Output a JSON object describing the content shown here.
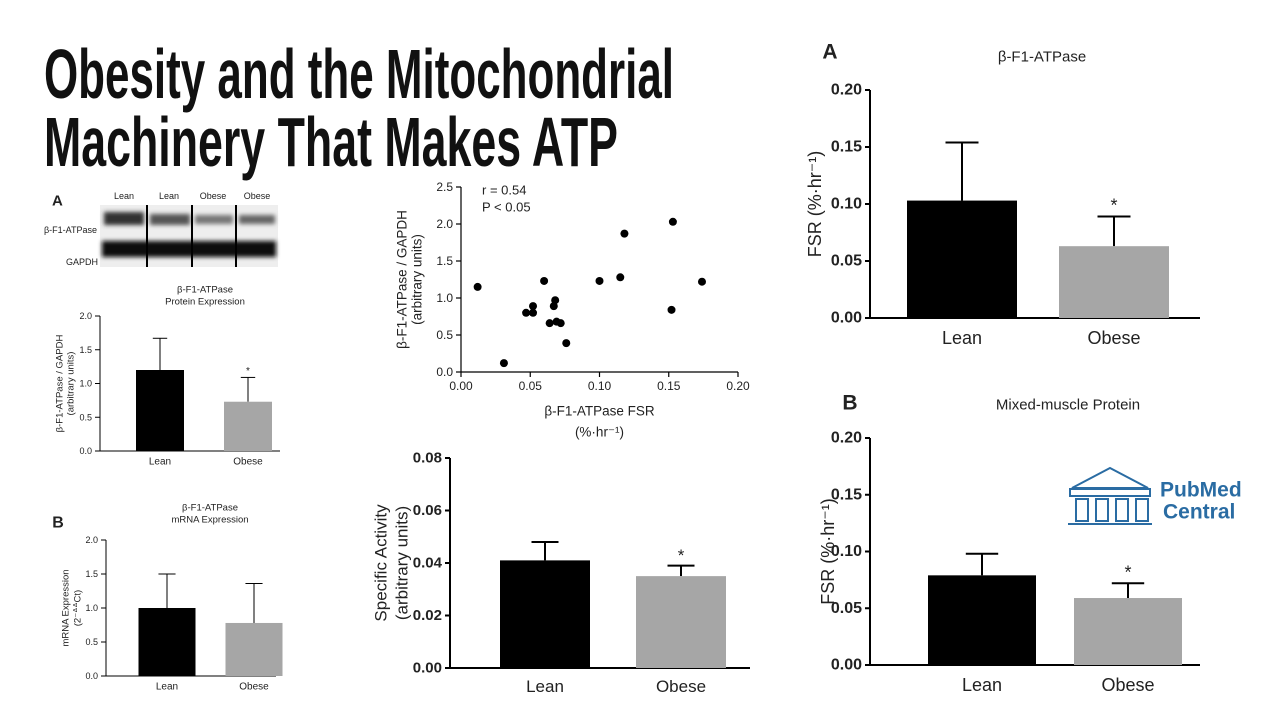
{
  "title": [
    "Obesity and the Mitochondrial",
    "Machinery That Makes ATP"
  ],
  "blot": {
    "panel": "A",
    "lanes": [
      "Lean",
      "Lean",
      "Obese",
      "Obese"
    ],
    "rows": [
      "β-F1-ATPase",
      "GAPDH"
    ]
  },
  "logo": {
    "lines": [
      "PubMed",
      "Central"
    ]
  },
  "chart_data": [
    {
      "type": "bar",
      "title": [
        "β-F1-ATPase",
        "Protein Expression"
      ],
      "ylabel": [
        "β-F1-ATPase / GAPDH",
        "(arbitrary units)"
      ],
      "categories": [
        "Lean",
        "Obese"
      ],
      "values": [
        1.2,
        0.73
      ],
      "errors": [
        0.47,
        0.36
      ],
      "colors": [
        "#000000",
        "#a6a6a6"
      ],
      "ylim": [
        0,
        2
      ],
      "yticks": [
        {
          "value": 0,
          "label": "0.0"
        },
        0.5,
        {
          "value": 1,
          "label": "1.0"
        },
        1.5,
        {
          "value": 2,
          "label": "2.0"
        }
      ],
      "annotation": "*"
    },
    {
      "type": "bar",
      "panel": "B",
      "title": [
        "β-F1-ATPase",
        "mRNA Expression"
      ],
      "ylabel": [
        "mRNA Expression",
        "(2⁻ᐞᐞCt)"
      ],
      "categories": [
        "Lean",
        "Obese"
      ],
      "values": [
        1.0,
        0.78
      ],
      "errors": [
        0.5,
        0.58
      ],
      "colors": [
        "#000000",
        "#a6a6a6"
      ],
      "ylim": [
        0,
        2
      ],
      "yticks": [
        {
          "value": 0,
          "label": "0.0"
        },
        0.5,
        {
          "value": 1,
          "label": "1.0"
        },
        1.5,
        {
          "value": 2,
          "label": "2.0"
        }
      ]
    },
    {
      "type": "scatter",
      "xlabel": [
        "β-F1-ATPase FSR",
        "(%·hr⁻¹)"
      ],
      "ylabel": [
        "β-F1-ATPase / GAPDH",
        "(arbitrary units)"
      ],
      "annotations": [
        "r = 0.54",
        "P < 0.05"
      ],
      "color": "#000000",
      "x": [
        0.012,
        0.031,
        0.06,
        0.047,
        0.052,
        0.052,
        0.068,
        0.067,
        0.064,
        0.069,
        0.072,
        0.076,
        0.1,
        0.115,
        0.118,
        0.153,
        0.152,
        0.174
      ],
      "values": [
        1.15,
        0.12,
        1.23,
        0.8,
        0.8,
        0.89,
        0.97,
        0.89,
        0.66,
        0.68,
        0.66,
        0.39,
        1.23,
        1.28,
        1.87,
        2.03,
        0.84,
        1.22
      ],
      "xlim": [
        0,
        0.2
      ],
      "xticks": [
        {
          "value": 0,
          "label": "0.00"
        },
        0.05,
        {
          "value": 0.1,
          "label": "0.10"
        },
        0.15,
        {
          "value": 0.2,
          "label": "0.20"
        }
      ],
      "ylim": [
        0,
        2.5
      ],
      "yticks": [
        {
          "value": 0,
          "label": "0.0"
        },
        0.5,
        {
          "value": 1,
          "label": "1.0"
        },
        1.5,
        {
          "value": 2,
          "label": "2.0"
        },
        2.5
      ]
    },
    {
      "type": "bar",
      "ylabel": [
        "Specific Activity",
        "(arbitrary units)"
      ],
      "categories": [
        "Lean",
        "Obese"
      ],
      "values": [
        0.041,
        0.035
      ],
      "errors": [
        0.007,
        0.004
      ],
      "colors": [
        "#000000",
        "#a6a6a6"
      ],
      "ylim": [
        0,
        0.08
      ],
      "yticks": [
        {
          "value": 0,
          "label": "0.00"
        },
        0.02,
        0.04,
        0.06,
        0.08
      ],
      "annotation": "*"
    },
    {
      "type": "bar",
      "panel": "A",
      "title": [
        "β-F1-ATPase"
      ],
      "ylabel": [
        "FSR (%·hr⁻¹)"
      ],
      "categories": [
        "Lean",
        "Obese"
      ],
      "values": [
        0.103,
        0.063
      ],
      "errors": [
        0.051,
        0.026
      ],
      "colors": [
        "#000000",
        "#a6a6a6"
      ],
      "ylim": [
        0,
        0.2
      ],
      "yticks": [
        {
          "value": 0,
          "label": "0.00"
        },
        0.05,
        {
          "value": 0.1,
          "label": "0.10"
        },
        0.15,
        {
          "value": 0.2,
          "label": "0.20"
        }
      ],
      "annotation": "*"
    },
    {
      "type": "bar",
      "panel": "B",
      "title": [
        "Mixed-muscle Protein"
      ],
      "ylabel": [
        "FSR (%·hr⁻¹)"
      ],
      "categories": [
        "Lean",
        "Obese"
      ],
      "values": [
        0.079,
        0.059
      ],
      "errors": [
        0.019,
        0.013
      ],
      "colors": [
        "#000000",
        "#a6a6a6"
      ],
      "ylim": [
        0,
        0.2
      ],
      "yticks": [
        {
          "value": 0,
          "label": "0.00"
        },
        0.05,
        {
          "value": 0.1,
          "label": "0.10"
        },
        0.15,
        {
          "value": 0.2,
          "label": "0.20"
        }
      ],
      "annotation": "*"
    }
  ]
}
